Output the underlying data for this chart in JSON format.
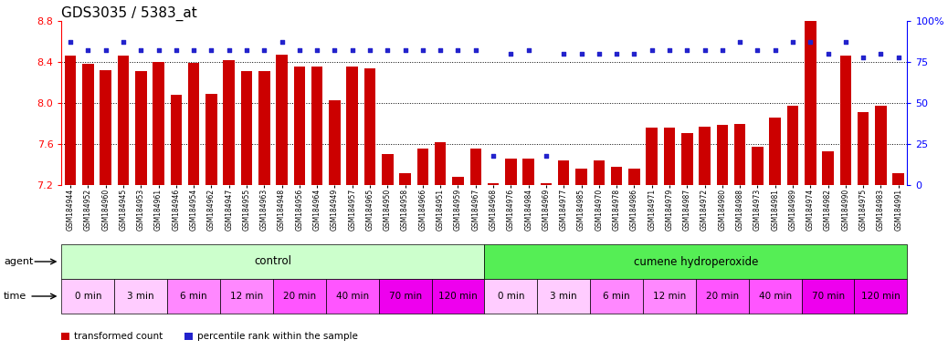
{
  "title": "GDS3035 / 5383_at",
  "ylim": [
    7.2,
    8.8
  ],
  "yticks": [
    7.2,
    7.6,
    8.0,
    8.4,
    8.8
  ],
  "y2lim": [
    0,
    100
  ],
  "y2ticks": [
    0,
    25,
    50,
    75,
    100
  ],
  "bar_color": "#cc0000",
  "dot_color": "#2222cc",
  "samples": [
    "GSM184944",
    "GSM184952",
    "GSM184960",
    "GSM184945",
    "GSM184953",
    "GSM184961",
    "GSM184946",
    "GSM184954",
    "GSM184962",
    "GSM184947",
    "GSM184955",
    "GSM184963",
    "GSM184948",
    "GSM184956",
    "GSM184964",
    "GSM184949",
    "GSM184957",
    "GSM184965",
    "GSM184950",
    "GSM184958",
    "GSM184966",
    "GSM184951",
    "GSM184959",
    "GSM184967",
    "GSM184968",
    "GSM184976",
    "GSM184984",
    "GSM184969",
    "GSM184977",
    "GSM184985",
    "GSM184970",
    "GSM184978",
    "GSM184986",
    "GSM184971",
    "GSM184979",
    "GSM184987",
    "GSM184972",
    "GSM184980",
    "GSM184988",
    "GSM184973",
    "GSM184981",
    "GSM184989",
    "GSM184974",
    "GSM184982",
    "GSM184990",
    "GSM184975",
    "GSM184983",
    "GSM184991"
  ],
  "bar_values": [
    8.46,
    8.38,
    8.32,
    8.46,
    8.31,
    8.4,
    8.08,
    8.39,
    8.09,
    8.42,
    8.31,
    8.31,
    8.47,
    8.36,
    8.36,
    8.03,
    8.36,
    8.34,
    7.5,
    7.32,
    7.56,
    7.62,
    7.28,
    7.56,
    7.22,
    7.46,
    7.46,
    7.22,
    7.44,
    7.36,
    7.44,
    7.38,
    7.36,
    7.76,
    7.76,
    7.71,
    7.77,
    7.79,
    7.8,
    7.57,
    7.86,
    7.97,
    8.81,
    7.53,
    8.46,
    7.91,
    7.97,
    7.32
  ],
  "percentile_values": [
    87,
    82,
    82,
    87,
    82,
    82,
    82,
    82,
    82,
    82,
    82,
    82,
    87,
    82,
    82,
    82,
    82,
    82,
    82,
    82,
    82,
    82,
    82,
    82,
    18,
    80,
    82,
    18,
    80,
    80,
    80,
    80,
    80,
    82,
    82,
    82,
    82,
    82,
    87,
    82,
    82,
    87,
    87,
    80,
    87,
    78,
    80,
    78
  ],
  "control_color": "#ccffcc",
  "cumene_color": "#55ee55",
  "time_colors": [
    "#ffccff",
    "#ee99ee",
    "#ff66ff",
    "#ee44dd",
    "#ff33ff",
    "#dd22cc",
    "#cc00cc",
    "#aa00aa"
  ],
  "time_colors_alt": [
    "#ffccff",
    "#ffccff",
    "#ff99ff",
    "#ff99ff",
    "#ff66ff",
    "#ff66ff",
    "#ee44ee",
    "#ee44ee"
  ],
  "background_color": "#ffffff"
}
